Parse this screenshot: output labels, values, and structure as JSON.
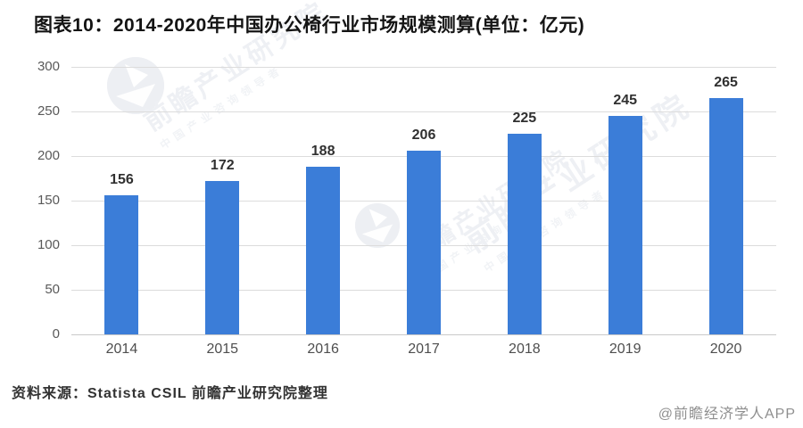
{
  "title": "图表10：2014-2020年中国办公椅行业市场规模测算(单位：亿元)",
  "chart_data": {
    "type": "bar",
    "title": "2014-2020年中国办公椅行业市场规模测算",
    "unit": "亿元",
    "categories": [
      "2014",
      "2015",
      "2016",
      "2017",
      "2018",
      "2019",
      "2020"
    ],
    "values": [
      156,
      172,
      188,
      206,
      225,
      245,
      265
    ],
    "xlabel": "",
    "ylabel": "",
    "ylim": [
      0,
      300
    ],
    "yticks": [
      0,
      50,
      100,
      150,
      200,
      250,
      300
    ],
    "grid": true,
    "legend_position": "none",
    "bar_color": "#3b7dd8"
  },
  "source_note": "资料来源：Statista CSIL 前瞻产业研究院整理",
  "attribution": "@前瞻经济学人APP",
  "watermark": {
    "brand_text": "前瞻产业研究院",
    "brand_subtext": "中国产业咨询领导者",
    "logo_name": "qianzhan-logo"
  },
  "colors": {
    "bar": "#3b7dd8",
    "gridline": "#dcdcdc",
    "axis_text": "#595959",
    "value_label": "#303030",
    "watermark": "#eef0f4",
    "background": "#ffffff"
  }
}
